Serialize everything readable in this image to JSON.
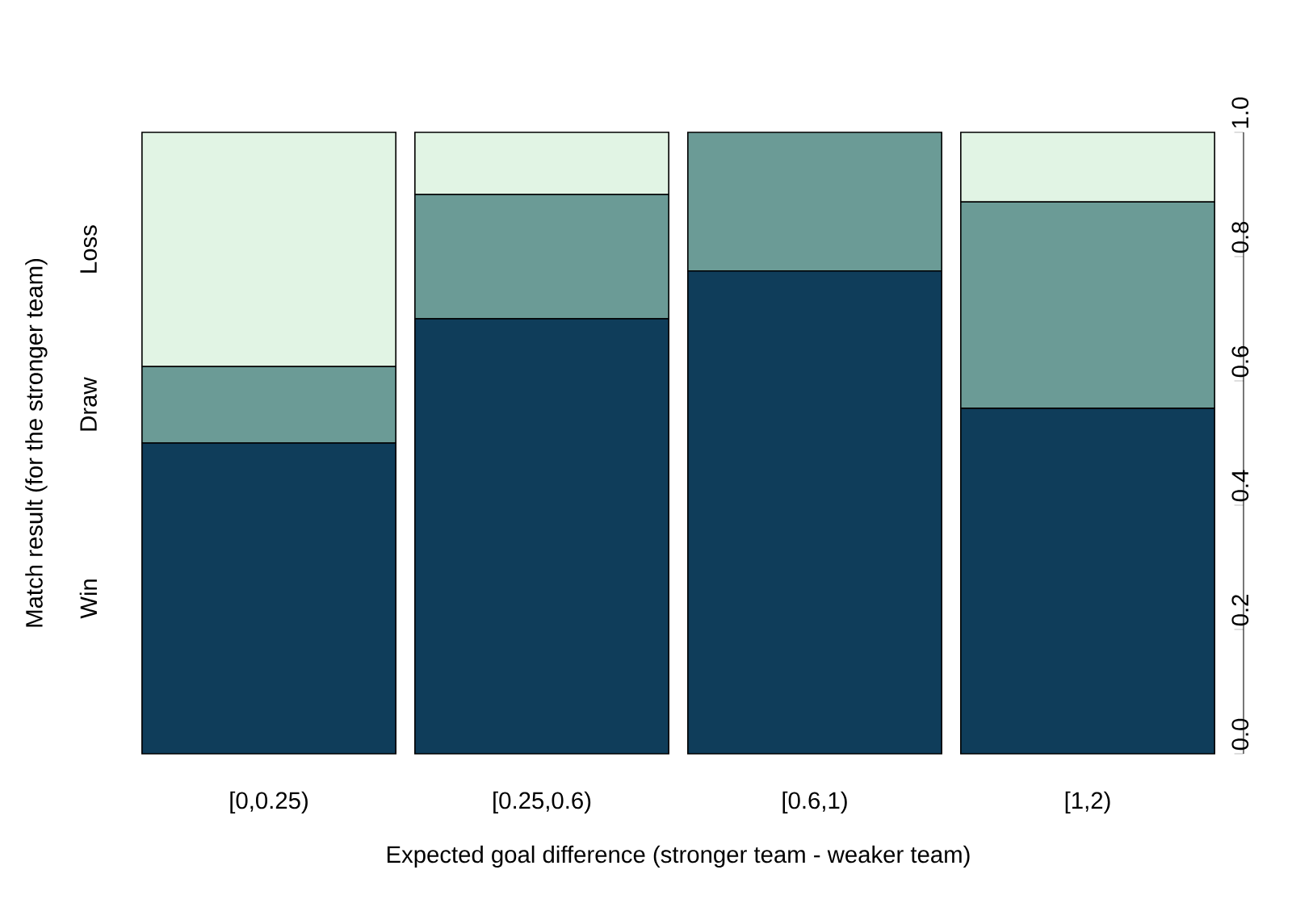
{
  "chart_data": {
    "type": "bar",
    "stacked": true,
    "xlabel": "Expected goal difference (stronger team - weaker team)",
    "ylabel": "Match result (for the stronger team)",
    "categories": [
      "[0,0.25)",
      "[0.25,0.6)",
      "[0.6,1)",
      "[1,2)"
    ],
    "series": [
      {
        "name": "Win",
        "color": "#0f3d5a",
        "values": [
          0.5,
          0.7,
          0.777,
          0.556
        ]
      },
      {
        "name": "Draw",
        "color": "#6b9b96",
        "values": [
          0.123,
          0.2,
          0.223,
          0.332
        ]
      },
      {
        "name": "Loss",
        "color": "#e1f4e4",
        "values": [
          0.377,
          0.1,
          0,
          0.112
        ]
      }
    ],
    "ylim": [
      0,
      1
    ],
    "yticks": [
      {
        "value": 0,
        "label": "0.0"
      },
      {
        "value": 0.2,
        "label": "0.2"
      },
      {
        "value": 0.4,
        "label": "0.4"
      },
      {
        "value": 0.6,
        "label": "0.6"
      },
      {
        "value": 0.8,
        "label": "0.8"
      },
      {
        "value": 1,
        "label": "1.0"
      }
    ]
  }
}
